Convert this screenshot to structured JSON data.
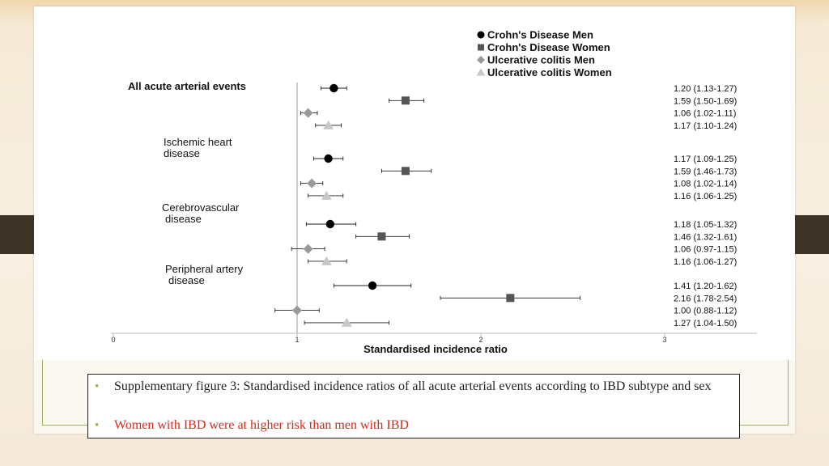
{
  "chart_data": {
    "type": "scatter",
    "subtype": "forest-plot",
    "xlabel": "Standardised incidence ratio",
    "xlim": [
      0,
      3
    ],
    "x_ticks": [
      "0",
      "1",
      "2",
      "3"
    ],
    "reference_line_x": 1,
    "legend": {
      "placement": "top-right",
      "entries": [
        {
          "name": "Crohn's Disease Men",
          "marker": "circle",
          "color": "#000000"
        },
        {
          "name": "Crohn's Disease Women",
          "marker": "square",
          "color": "#555555"
        },
        {
          "name": "Ulcerative colitis Men",
          "marker": "diamond",
          "color": "#9a9a9a"
        },
        {
          "name": "Ulcerative colitis Women",
          "marker": "triangle",
          "color": "#c8c8c8"
        }
      ]
    },
    "groups": [
      {
        "label_lines": [
          "All acute arterial events"
        ],
        "bold": true,
        "rows": [
          {
            "series": 0,
            "est": 1.2,
            "lo": 1.13,
            "hi": 1.27,
            "label": "1.20 (1.13-1.27)"
          },
          {
            "series": 1,
            "est": 1.59,
            "lo": 1.5,
            "hi": 1.69,
            "label": "1.59 (1.50-1.69)"
          },
          {
            "series": 2,
            "est": 1.06,
            "lo": 1.02,
            "hi": 1.11,
            "label": "1.06 (1.02-1.11)"
          },
          {
            "series": 3,
            "est": 1.17,
            "lo": 1.1,
            "hi": 1.24,
            "label": "1.17 (1.10-1.24)"
          }
        ]
      },
      {
        "label_lines": [
          "Ischemic heart",
          "disease"
        ],
        "bold": false,
        "rows": [
          {
            "series": 0,
            "est": 1.17,
            "lo": 1.09,
            "hi": 1.25,
            "label": "1.17 (1.09-1.25)"
          },
          {
            "series": 1,
            "est": 1.59,
            "lo": 1.46,
            "hi": 1.73,
            "label": "1.59 (1.46-1.73)"
          },
          {
            "series": 2,
            "est": 1.08,
            "lo": 1.02,
            "hi": 1.14,
            "label": "1.08 (1.02-1.14)"
          },
          {
            "series": 3,
            "est": 1.16,
            "lo": 1.06,
            "hi": 1.25,
            "label": "1.16 (1.06-1.25)"
          }
        ]
      },
      {
        "label_lines": [
          "Cerebrovascular",
          "disease"
        ],
        "bold": false,
        "rows": [
          {
            "series": 0,
            "est": 1.18,
            "lo": 1.05,
            "hi": 1.32,
            "label": "1.18 (1.05-1.32)"
          },
          {
            "series": 1,
            "est": 1.46,
            "lo": 1.32,
            "hi": 1.61,
            "label": "1.46 (1.32-1.61)"
          },
          {
            "series": 2,
            "est": 1.06,
            "lo": 0.97,
            "hi": 1.15,
            "label": "1.06 (0.97-1.15)"
          },
          {
            "series": 3,
            "est": 1.16,
            "lo": 1.06,
            "hi": 1.27,
            "label": "1.16 (1.06-1.27)"
          }
        ]
      },
      {
        "label_lines": [
          "Peripheral artery",
          "disease"
        ],
        "bold": false,
        "rows": [
          {
            "series": 0,
            "est": 1.41,
            "lo": 1.2,
            "hi": 1.62,
            "label": "1.41 (1.20-1.62)"
          },
          {
            "series": 1,
            "est": 2.16,
            "lo": 1.78,
            "hi": 2.54,
            "label": "2.16 (1.78-2.54)"
          },
          {
            "series": 2,
            "est": 1.0,
            "lo": 0.88,
            "hi": 1.12,
            "label": "1.00 (0.88-1.12)"
          },
          {
            "series": 3,
            "est": 1.27,
            "lo": 1.04,
            "hi": 1.5,
            "label": "1.27 (1.04-1.50)"
          }
        ]
      }
    ]
  },
  "caption": {
    "line1": "Supplementary figure 3: Standardised incidence ratios of all acute arterial events according to IBD subtype and sex",
    "line2": "Women with IBD were at higher risk than men with IBD",
    "bullet": "•"
  },
  "colors": {
    "accent_green": "#8fae4a",
    "highlight_red": "#d42a1c",
    "band_dark": "#3d3327"
  }
}
